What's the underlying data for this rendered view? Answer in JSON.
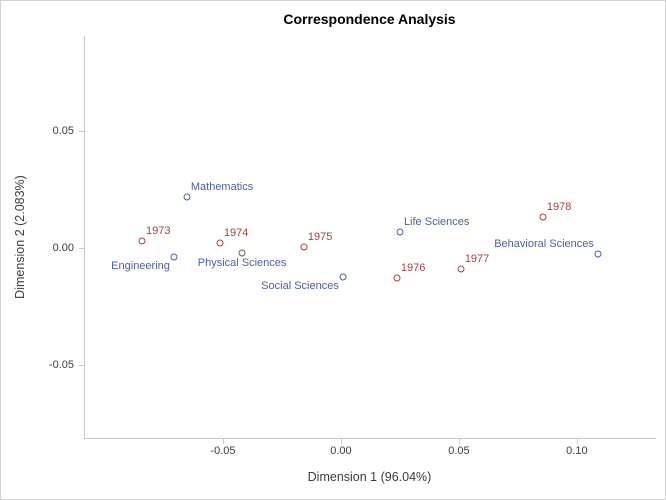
{
  "title": "Correspondence Analysis",
  "colors": {
    "years_series": "#a7423c",
    "disciplines_series": "#4d5fa6",
    "axis_line": "#c9c9c9",
    "axis_text": "#3d3d3d",
    "title_text": "#000000"
  },
  "chart_data": {
    "type": "scatter",
    "title": "Correspondence Analysis",
    "xlabel": "Dimension 1 (96.04%)",
    "ylabel": "Dimension 2 (2.083%)",
    "xlim": [
      -0.1089,
      0.1331
    ],
    "ylim": [
      -0.0812,
      0.0906
    ],
    "x_ticks": [
      -0.05,
      0.0,
      0.05,
      0.1
    ],
    "x_tick_labels": [
      "-0.05",
      "0.00",
      "0.05",
      "0.10"
    ],
    "y_ticks": [
      0.05,
      0.0,
      -0.05
    ],
    "y_tick_labels": [
      "0.05",
      "0.00",
      "-0.05"
    ],
    "grid": false,
    "legend": "none",
    "marker": "open-circle",
    "series": [
      {
        "name": "years",
        "color": "#a7423c",
        "points": [
          {
            "label": "1973",
            "x": -0.0843,
            "y": 0.003,
            "label_pos": "above-right"
          },
          {
            "label": "1974",
            "x": -0.0513,
            "y": 0.0021,
            "label_pos": "above-right"
          },
          {
            "label": "1975",
            "x": -0.0157,
            "y": 0.0004,
            "label_pos": "above-right"
          },
          {
            "label": "1976",
            "x": 0.0237,
            "y": -0.0128,
            "label_pos": "above-right"
          },
          {
            "label": "1977",
            "x": 0.0508,
            "y": -0.009,
            "label_pos": "above-right"
          },
          {
            "label": "1978",
            "x": 0.0856,
            "y": 0.0133,
            "label_pos": "above-right"
          }
        ]
      },
      {
        "name": "disciplines",
        "color": "#4d5fa6",
        "points": [
          {
            "label": "Engineering",
            "x": -0.0708,
            "y": -0.0038,
            "label_pos": "below-left"
          },
          {
            "label": "Mathematics",
            "x": -0.0653,
            "y": 0.0218,
            "label_pos": "above-right"
          },
          {
            "label": "Physical Sciences",
            "x": -0.0419,
            "y": -0.0021,
            "label_pos": "below-center"
          },
          {
            "label": "Social Sciences",
            "x": 0.0008,
            "y": -0.0124,
            "label_pos": "below-left"
          },
          {
            "label": "Life Sciences",
            "x": 0.025,
            "y": 0.0068,
            "label_pos": "above-right"
          },
          {
            "label": "Behavioral Sciences",
            "x": 0.1089,
            "y": -0.0026,
            "label_pos": "above-left"
          }
        ]
      }
    ]
  }
}
